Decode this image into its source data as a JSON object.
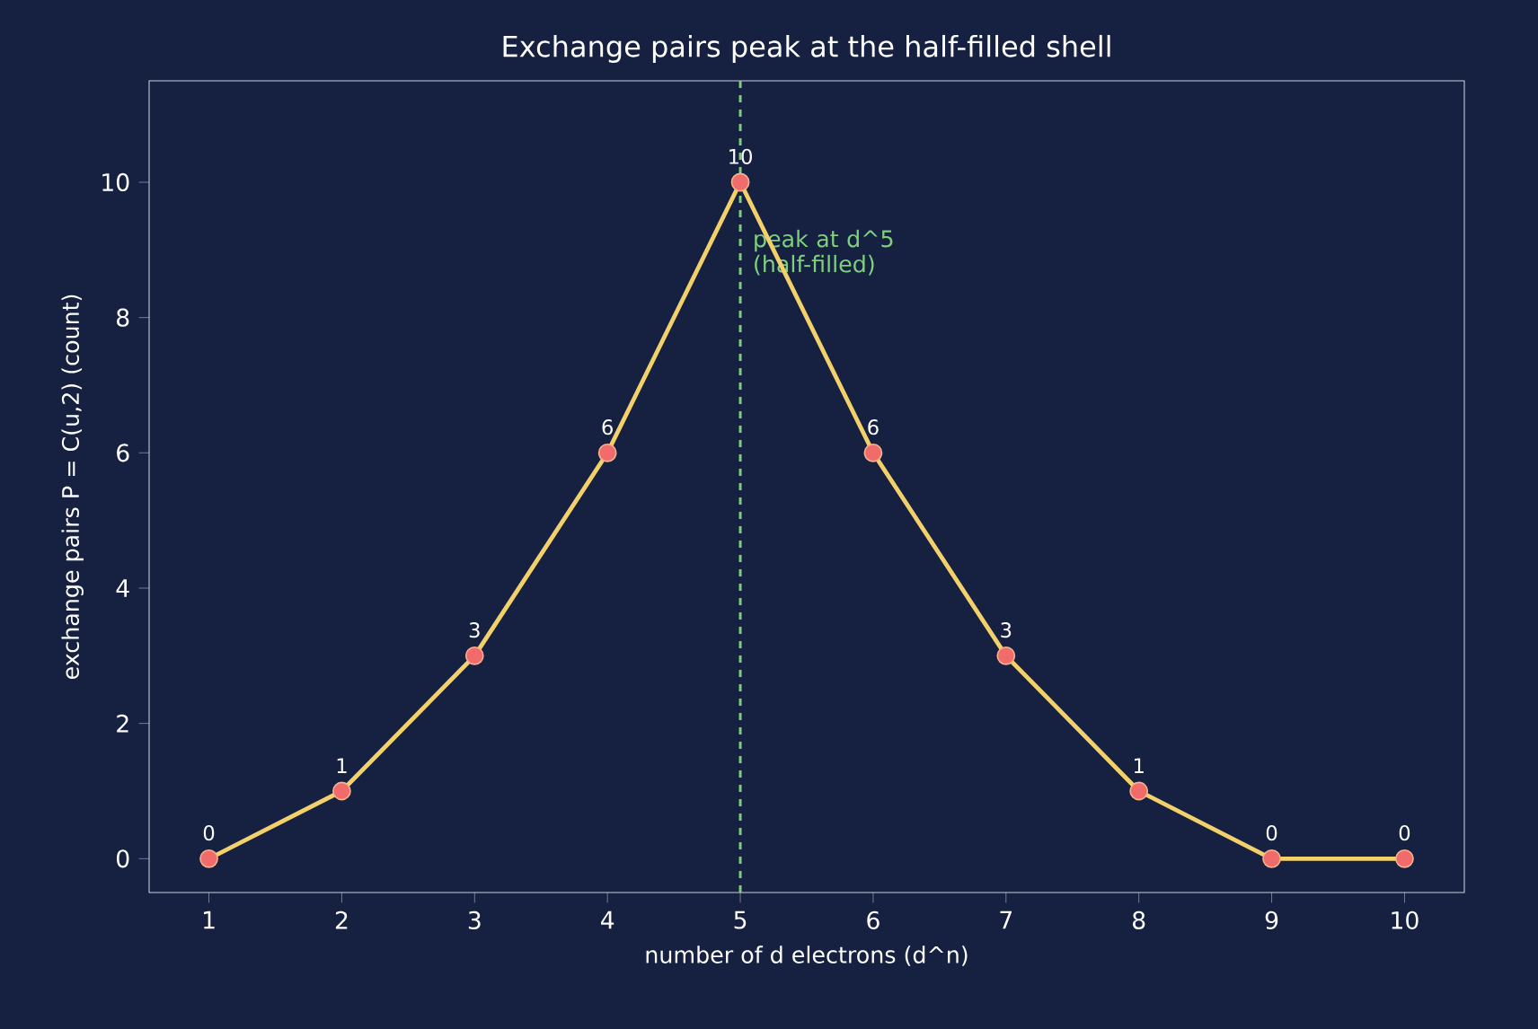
{
  "chart_data": {
    "type": "line",
    "title": "Exchange pairs peak at the half-filled shell",
    "xlabel": "number of d electrons  (d^n)",
    "ylabel": "exchange pairs  P = C(u,2)  (count)",
    "x": [
      1,
      2,
      3,
      4,
      5,
      6,
      7,
      8,
      9,
      10
    ],
    "series": [
      {
        "color": "#f2d16b",
        "values": [
          0,
          1,
          3,
          6,
          10,
          6,
          3,
          1,
          0,
          0
        ]
      }
    ],
    "xlim": [
      0.55,
      10.45
    ],
    "ylim": [
      -0.5,
      11.5
    ],
    "xticks": [
      1,
      2,
      3,
      4,
      5,
      6,
      7,
      8,
      9,
      10
    ],
    "yticks": [
      0,
      2,
      4,
      6,
      8,
      10
    ],
    "ref_lines": [
      {
        "axis": "x",
        "value": 5,
        "label": "peak at d^5 (half-filled)",
        "color": "#7fcf7f",
        "line_style": "dashed"
      }
    ],
    "data_labels": true,
    "marker": "circle",
    "line_style": "solid",
    "grid": false
  }
}
